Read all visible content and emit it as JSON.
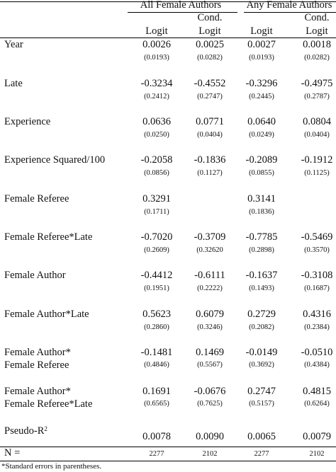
{
  "header": {
    "groups": [
      {
        "label": "All Female Authors"
      },
      {
        "label": "Any Female Authors"
      }
    ],
    "columns": [
      {
        "top": "",
        "bottom": "Logit"
      },
      {
        "top": "Cond.",
        "bottom": "Logit"
      },
      {
        "top": "",
        "bottom": "Logit"
      },
      {
        "top": "Cond.",
        "bottom": "Logit"
      }
    ]
  },
  "rows": [
    {
      "label": [
        "Year"
      ],
      "coef": [
        "0.0026",
        "0.0025",
        "0.0027",
        "0.0018"
      ],
      "se": [
        "(0.0193)",
        "(0.0282)",
        "(0.0193)",
        "(0.0282)"
      ]
    },
    {
      "label": [
        "Late"
      ],
      "coef": [
        "-0.3234",
        "-0.4552",
        "-0.3296",
        "-0.4975"
      ],
      "se": [
        "(0.2412)",
        "(0.2747)",
        "(0.2445)",
        "(0.2787)"
      ]
    },
    {
      "label": [
        "Experience"
      ],
      "coef": [
        "0.0636",
        "0.0771",
        "0.0640",
        "0.0804"
      ],
      "se": [
        "(0.0250)",
        "(0.0404)",
        "(0.0249)",
        "(0.0404)"
      ]
    },
    {
      "label": [
        "Experience Squared/100"
      ],
      "coef": [
        "-0.2058",
        "-0.1836",
        "-0.2089",
        "-0.1912"
      ],
      "se": [
        "(0.0856)",
        "(0.1127)",
        "(0.0855)",
        "(0.1125)"
      ]
    },
    {
      "label": [
        "Female Referee"
      ],
      "coef": [
        "0.3291",
        "",
        "0.3141",
        ""
      ],
      "se": [
        "(0.1711)",
        "",
        "(0.1836)",
        ""
      ]
    },
    {
      "label": [
        "Female Referee*Late"
      ],
      "coef": [
        "-0.7020",
        "-0.3709",
        "-0.7785",
        "-0.5469"
      ],
      "se": [
        "(0.2609)",
        "(0.32620",
        "(0.2898)",
        "(0.3570)"
      ]
    },
    {
      "label": [
        "Female Author"
      ],
      "coef": [
        "-0.4412",
        "-0.6111",
        "-0.1637",
        "-0.3108"
      ],
      "se": [
        "(0.1951)",
        "(0.2222)",
        "(0.1493)",
        "(0.1687)"
      ]
    },
    {
      "label": [
        "Female Author*Late"
      ],
      "coef": [
        "0.5623",
        "0.6079",
        "0.2729",
        "0.4316"
      ],
      "se": [
        "(0.2860)",
        "(0.3246)",
        "(0.2082)",
        "(0.2384)"
      ]
    },
    {
      "label": [
        "Female Author*",
        " Female Referee"
      ],
      "coef": [
        "-0.1481",
        "0.1469",
        "-0.0149",
        "-0.0510"
      ],
      "se": [
        "(0.4846)",
        "(0.5567)",
        "(0.3692)",
        "(0.4384)"
      ]
    },
    {
      "label": [
        "Female Author*",
        " Female Referee*Late"
      ],
      "coef": [
        "0.1691",
        "-0.0676",
        "0.2747",
        "0.4815"
      ],
      "se": [
        "(0.6565)",
        "(0.7625)",
        "(0.5157)",
        "(0.6264)"
      ]
    }
  ],
  "pseudo_r2": {
    "label": "Pseudo-R",
    "sup": "2",
    "values": [
      "0.0078",
      "0.0090",
      "0.0065",
      "0.0079"
    ]
  },
  "n_row": {
    "label": "N =",
    "values": [
      "2277",
      "2102",
      "2277",
      "2102"
    ]
  },
  "footnote": "*Standard errors in parentheses."
}
